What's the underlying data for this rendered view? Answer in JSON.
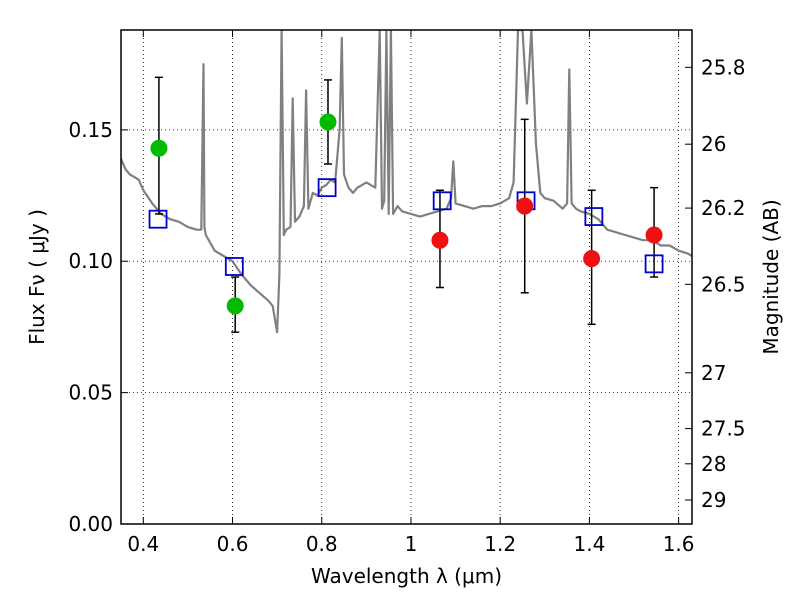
{
  "chart_data": {
    "type": "scatter",
    "xlabel": "Wavelength  λ (μm)",
    "ylabel": "Flux  Fν  ( μJy )",
    "ylabel_right": "Magnitude (AB)",
    "xlim": [
      0.35,
      1.63
    ],
    "ylim": [
      0.0,
      0.188
    ],
    "grid": true,
    "x_ticks": [
      0.4,
      0.6,
      0.8,
      1.0,
      1.2,
      1.4,
      1.6
    ],
    "x_tick_labels": [
      "0.4",
      "0.6",
      "0.8",
      "1",
      "1.2",
      "1.4",
      "1.6"
    ],
    "y_ticks": [
      0.0,
      0.05,
      0.1,
      0.15
    ],
    "y_tick_labels": [
      "0.00",
      "0.05",
      "0.10",
      "0.15"
    ],
    "mag_ticks": [
      {
        "mag": 25.8,
        "label": "25.8"
      },
      {
        "mag": 26.0,
        "label": "26"
      },
      {
        "mag": 26.2,
        "label": "26.2"
      },
      {
        "mag": 26.5,
        "label": "26.5"
      },
      {
        "mag": 27.0,
        "label": "27"
      },
      {
        "mag": 27.5,
        "label": "27.5"
      },
      {
        "mag": 28.0,
        "label": "28"
      },
      {
        "mag": 29.0,
        "label": "29"
      }
    ],
    "series": [
      {
        "marker": "circle",
        "color": "#00bb00",
        "x": [
          0.435,
          0.606,
          0.814
        ],
        "y": [
          0.143,
          0.083,
          0.153
        ],
        "err_low": [
          0.118,
          0.073,
          0.137
        ],
        "err_high": [
          0.17,
          0.094,
          0.169
        ]
      },
      {
        "marker": "circle",
        "color": "#ee1111",
        "x": [
          1.065,
          1.255,
          1.405,
          1.545
        ],
        "y": [
          0.108,
          0.121,
          0.101,
          0.11
        ],
        "err_low": [
          0.09,
          0.088,
          0.076,
          0.094
        ],
        "err_high": [
          0.127,
          0.154,
          0.127,
          0.128
        ]
      },
      {
        "marker": "open-square",
        "color": "#0000cc",
        "x": [
          0.433,
          0.604,
          0.812,
          1.07,
          1.258,
          1.41,
          1.545
        ],
        "y": [
          0.116,
          0.098,
          0.128,
          0.123,
          0.123,
          0.117,
          0.099
        ]
      },
      {
        "marker": "line",
        "color": "#808080",
        "x": [
          0.35,
          0.36,
          0.37,
          0.38,
          0.39,
          0.4,
          0.42,
          0.44,
          0.46,
          0.48,
          0.5,
          0.52,
          0.53,
          0.535,
          0.537,
          0.54,
          0.56,
          0.58,
          0.6,
          0.62,
          0.64,
          0.66,
          0.68,
          0.69,
          0.7,
          0.705,
          0.71,
          0.715,
          0.72,
          0.73,
          0.735,
          0.74,
          0.75,
          0.76,
          0.765,
          0.77,
          0.78,
          0.79,
          0.8,
          0.81,
          0.82,
          0.83,
          0.84,
          0.845,
          0.85,
          0.86,
          0.87,
          0.88,
          0.9,
          0.92,
          0.93,
          0.935,
          0.94,
          0.945,
          0.95,
          0.955,
          0.96,
          0.97,
          0.98,
          1.0,
          1.02,
          1.04,
          1.06,
          1.08,
          1.09,
          1.095,
          1.1,
          1.12,
          1.14,
          1.16,
          1.18,
          1.2,
          1.22,
          1.23,
          1.24,
          1.25,
          1.26,
          1.27,
          1.28,
          1.29,
          1.3,
          1.32,
          1.34,
          1.35,
          1.355,
          1.36,
          1.37,
          1.38,
          1.4,
          1.42,
          1.44,
          1.46,
          1.48,
          1.5,
          1.52,
          1.54,
          1.56,
          1.58,
          1.6,
          1.62,
          1.63
        ],
        "y": [
          0.139,
          0.135,
          0.133,
          0.132,
          0.131,
          0.127,
          0.122,
          0.118,
          0.116,
          0.115,
          0.113,
          0.112,
          0.112,
          0.175,
          0.113,
          0.11,
          0.104,
          0.102,
          0.1,
          0.095,
          0.091,
          0.088,
          0.085,
          0.083,
          0.073,
          0.095,
          0.188,
          0.11,
          0.112,
          0.113,
          0.162,
          0.115,
          0.117,
          0.121,
          0.165,
          0.12,
          0.126,
          0.125,
          0.128,
          0.129,
          0.131,
          0.13,
          0.15,
          0.185,
          0.133,
          0.128,
          0.126,
          0.128,
          0.13,
          0.128,
          0.188,
          0.12,
          0.123,
          0.188,
          0.118,
          0.188,
          0.118,
          0.121,
          0.119,
          0.118,
          0.117,
          0.118,
          0.119,
          0.12,
          0.124,
          0.138,
          0.122,
          0.121,
          0.12,
          0.121,
          0.121,
          0.122,
          0.124,
          0.13,
          0.188,
          0.188,
          0.16,
          0.188,
          0.145,
          0.126,
          0.124,
          0.123,
          0.12,
          0.122,
          0.173,
          0.122,
          0.12,
          0.119,
          0.118,
          0.116,
          0.112,
          0.111,
          0.11,
          0.109,
          0.108,
          0.108,
          0.106,
          0.106,
          0.104,
          0.103,
          0.102
        ]
      }
    ]
  }
}
